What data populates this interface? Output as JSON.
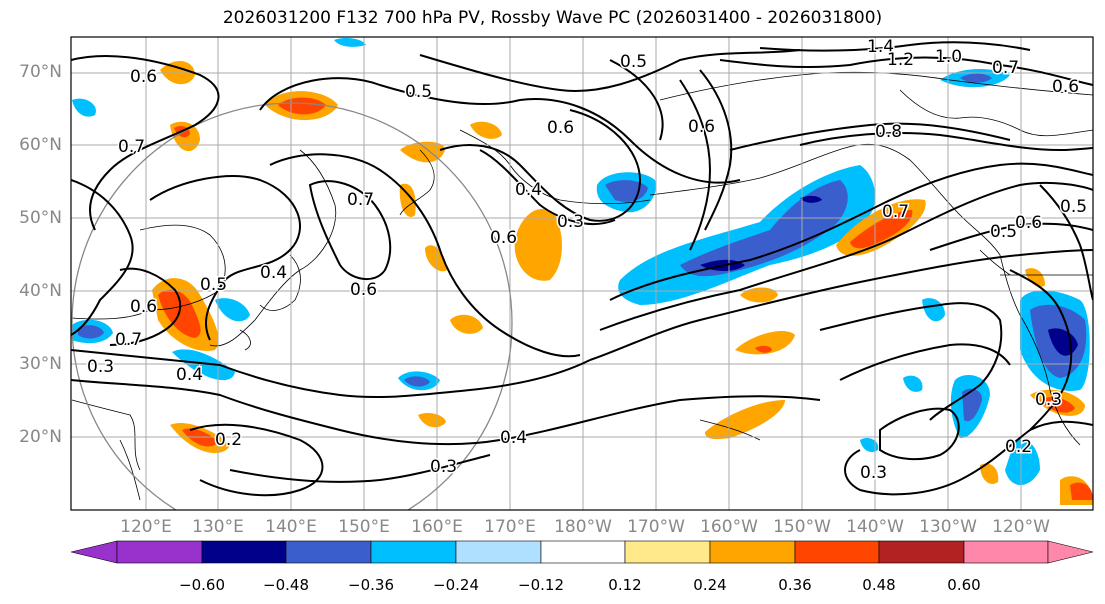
{
  "title": "2026031200 F132 700 hPa PV, Rossby Wave PC (2026031400 - 2026031800)",
  "lat_labels": [
    "70°N",
    "60°N",
    "50°N",
    "40°N",
    "30°N",
    "20°N"
  ],
  "lon_labels": [
    "120°E",
    "130°E",
    "140°E",
    "150°E",
    "160°E",
    "170°E",
    "180°W",
    "170°W",
    "160°W",
    "150°W",
    "140°W",
    "130°W",
    "120°W"
  ],
  "colorbar": {
    "ticks": [
      "−0.60",
      "−0.48",
      "−0.36",
      "−0.24",
      "−0.12",
      "0.12",
      "0.24",
      "0.36",
      "0.48",
      "0.60"
    ],
    "colors": [
      "#9932cc",
      "#00008b",
      "#3a5fcd",
      "#00bfff",
      "#b0e0ff",
      "#ffffff",
      "#ffe98a",
      "#ffa500",
      "#ff4500",
      "#b22222",
      "#ff88aa"
    ]
  },
  "contour_labels": [
    "0.6",
    "0.5",
    "0.5",
    "0.6",
    "0.6",
    "1.4",
    "1.2",
    "1.0",
    "0.7",
    "0.6",
    "0.7",
    "0.7",
    "0.8",
    "0.4",
    "0.3",
    "0.6",
    "0.7",
    "0.5",
    "0.6",
    "0.5",
    "0.4",
    "0.6",
    "0.4",
    "0.3",
    "0.2",
    "0.4",
    "0.3",
    "0.3",
    "0.3",
    "0.2",
    "0.7",
    "0.5",
    "0.6"
  ]
}
